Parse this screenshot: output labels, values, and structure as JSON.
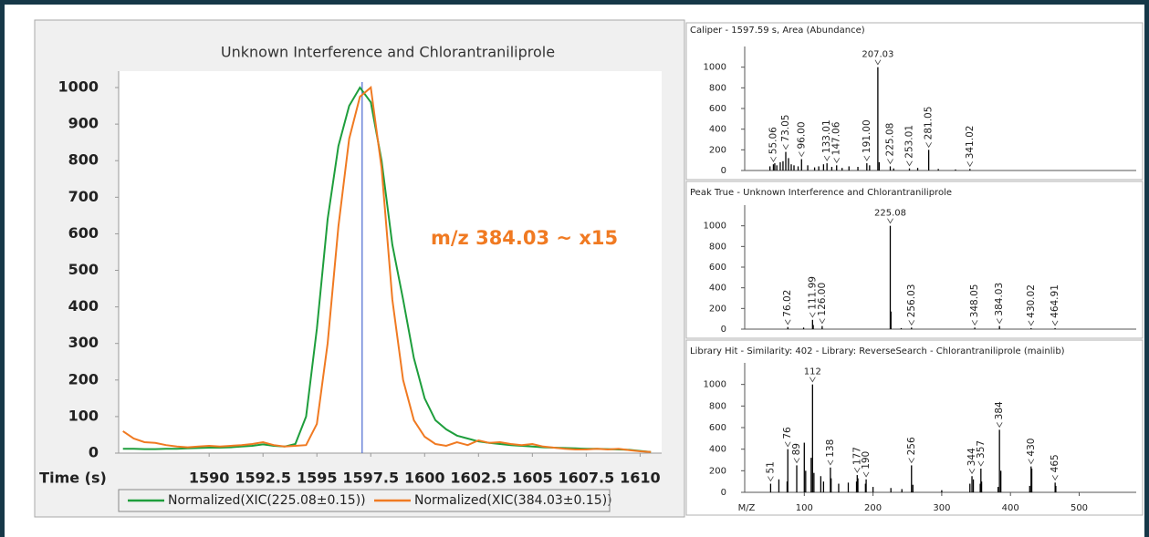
{
  "chart_data": [
    {
      "type": "line",
      "title": "Unknown Interference and Chlorantraniliprole",
      "x_label": "Time (s)",
      "annotation": "m/z 384.03 ~ x15",
      "cursor_x": 1597.1,
      "x": [
        1586,
        1586.5,
        1587,
        1587.5,
        1588,
        1588.5,
        1589,
        1589.5,
        1590,
        1590.5,
        1591,
        1591.5,
        1592,
        1592.5,
        1593,
        1593.5,
        1594,
        1594.5,
        1595,
        1595.5,
        1596,
        1596.5,
        1597,
        1597.5,
        1598,
        1598.5,
        1599,
        1599.5,
        1600,
        1600.5,
        1601,
        1601.5,
        1602,
        1602.5,
        1603,
        1603.5,
        1604,
        1604.5,
        1605,
        1605.5,
        1606,
        1606.5,
        1607,
        1607.5,
        1608,
        1608.5,
        1609,
        1609.5,
        1610,
        1610.5
      ],
      "series": [
        {
          "name": "Normalized(XIC(225.08±0.15))",
          "color": "#1e9e3c",
          "values": [
            12,
            12,
            11,
            11,
            12,
            12,
            13,
            14,
            15,
            15,
            16,
            18,
            20,
            24,
            20,
            18,
            25,
            100,
            340,
            640,
            840,
            950,
            1000,
            960,
            800,
            570,
            420,
            260,
            150,
            90,
            65,
            48,
            40,
            32,
            28,
            25,
            22,
            20,
            18,
            16,
            15,
            14,
            13,
            12,
            12,
            11,
            10,
            9,
            6,
            3
          ]
        },
        {
          "name": "Normalized(XIC(384.03±0.15))",
          "color": "#f07a22",
          "values": [
            60,
            40,
            30,
            28,
            22,
            18,
            16,
            18,
            20,
            18,
            20,
            22,
            25,
            30,
            22,
            18,
            20,
            22,
            80,
            300,
            620,
            860,
            975,
            1000,
            780,
            420,
            200,
            90,
            45,
            25,
            20,
            30,
            22,
            35,
            28,
            30,
            25,
            22,
            25,
            18,
            15,
            12,
            10,
            10,
            12,
            10,
            12,
            8,
            5,
            3
          ]
        }
      ],
      "xlim": [
        1585.8,
        1611
      ],
      "xticks": [
        1590,
        1592.5,
        1595,
        1597.5,
        1600,
        1602.5,
        1605,
        1607.5,
        1610
      ],
      "ylim": [
        0,
        1045
      ],
      "yticks": [
        0,
        100,
        200,
        300,
        400,
        500,
        600,
        700,
        800,
        900,
        1000
      ]
    },
    {
      "type": "stem",
      "title": "Caliper - 1597.59 s, Area (Abundance)",
      "color": "#000000",
      "series": [
        {
          "x": [
            55.06,
            73.05,
            96,
            133.01,
            147.06,
            191,
            207.03,
            225.08,
            253.01,
            281.05,
            341.02
          ],
          "values": [
            60,
            180,
            110,
            70,
            50,
            70,
            1000,
            40,
            20,
            200,
            15
          ],
          "x_labels": [
            "55.06",
            "73.05",
            "96.00",
            "133.01",
            "147.06",
            "191.00",
            "207.03",
            "225.08",
            "253.01",
            "281.05",
            "341.02"
          ]
        },
        {
          "x": [
            50,
            57,
            60,
            65,
            69,
            77,
            81,
            85,
            91,
            105,
            115,
            121,
            128,
            140,
            155,
            165,
            178,
            195,
            209,
            230,
            265,
            295,
            320
          ],
          "values": [
            40,
            70,
            50,
            80,
            90,
            120,
            60,
            50,
            40,
            50,
            30,
            40,
            60,
            35,
            25,
            40,
            35,
            50,
            80,
            20,
            25,
            15,
            10
          ]
        }
      ],
      "xlim": [
        0,
        583
      ],
      "ylim": [
        0,
        1200
      ],
      "yticks": [
        0,
        200,
        400,
        600,
        800,
        1000
      ]
    },
    {
      "type": "stem",
      "title": "Peak True - Unknown Interference and Chlorantraniliprole",
      "color": "#000000",
      "series": [
        {
          "x": [
            76.02,
            111.99,
            126,
            225.08,
            256.03,
            348.05,
            384.03,
            430.02,
            464.91
          ],
          "values": [
            20,
            90,
            30,
            1000,
            15,
            15,
            30,
            10,
            10
          ],
          "x_labels": [
            "76.02",
            "111.99",
            "126.00",
            "225.08",
            "256.03",
            "348.05",
            "384.03",
            "430.02",
            "464.91"
          ]
        },
        {
          "x": [
            99,
            113,
            226.08,
            241
          ],
          "values": [
            15,
            40,
            170,
            10
          ]
        }
      ],
      "xlim": [
        0,
        583
      ],
      "ylim": [
        0,
        1200
      ],
      "yticks": [
        0,
        200,
        400,
        600,
        800,
        1000
      ]
    },
    {
      "type": "stem",
      "title": "Library Hit - Similarity: 402 - Library: ReverseSearch - Chlorantraniliprole (mainlib)",
      "color": "#000000",
      "x_label": "M/Z",
      "series": [
        {
          "x": [
            51,
            76,
            89,
            112,
            138,
            177,
            190,
            256,
            344,
            357,
            384,
            430,
            465
          ],
          "values": [
            80,
            400,
            250,
            1000,
            230,
            160,
            120,
            250,
            150,
            220,
            580,
            240,
            90
          ]
        },
        {
          "x": [
            63,
            75,
            100,
            102,
            110,
            114,
            124,
            128,
            139,
            150,
            164,
            176,
            178,
            189,
            200,
            226,
            242,
            258,
            300,
            341,
            346,
            356,
            358,
            382,
            386,
            428,
            431,
            466
          ],
          "values": [
            120,
            100,
            460,
            200,
            320,
            180,
            150,
            100,
            130,
            80,
            90,
            100,
            130,
            80,
            50,
            40,
            30,
            70,
            20,
            80,
            120,
            80,
            100,
            50,
            200,
            60,
            220,
            60
          ]
        }
      ],
      "xlim": [
        0,
        583
      ],
      "xticks": [
        100,
        200,
        300,
        400,
        500
      ],
      "ylim": [
        0,
        1200
      ],
      "yticks": [
        0,
        200,
        400,
        600,
        800,
        1000
      ]
    }
  ]
}
